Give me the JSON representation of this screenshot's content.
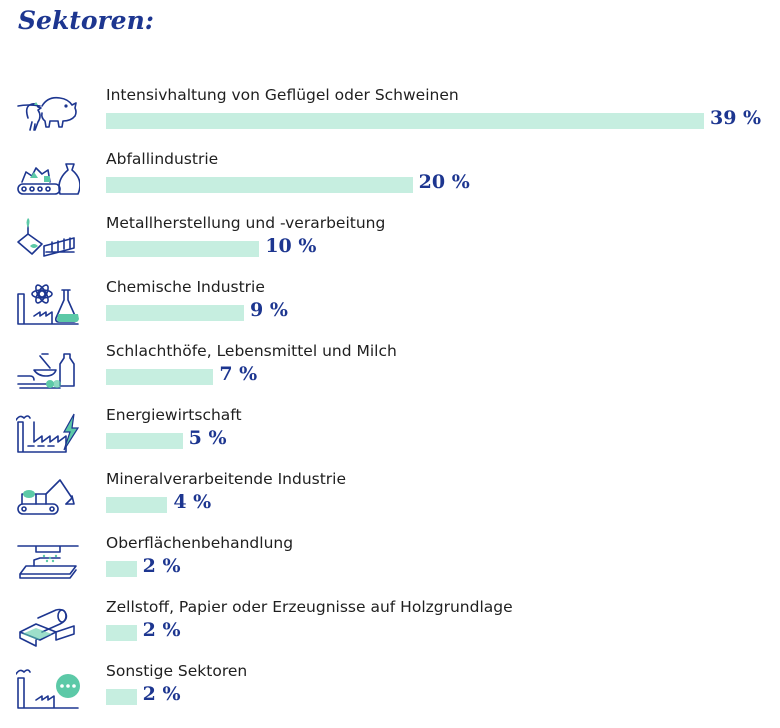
{
  "title": "Sektoren:",
  "chart_data": {
    "type": "bar",
    "orientation": "horizontal",
    "max": 39,
    "title": "Sektoren:",
    "colors": {
      "bar": "#c6eee0",
      "value": "#1d3690",
      "icon": "#1d3690",
      "icon_accent": "#5cc9a7"
    },
    "items": [
      {
        "label": "Intensivhaltung von Geflügel oder Schweinen",
        "value": 39,
        "value_label": "39 %",
        "icon": "pig-chicken-icon"
      },
      {
        "label": "Abfallindustrie",
        "value": 20,
        "value_label": "20 %",
        "icon": "waste-conveyor-icon"
      },
      {
        "label": "Metallherstellung und -verarbeitung",
        "value": 10,
        "value_label": "10 %",
        "icon": "metal-ladle-icon"
      },
      {
        "label": "Chemische Industrie",
        "value": 9,
        "value_label": "9 %",
        "icon": "chemical-flask-icon"
      },
      {
        "label": "Schlachthöfe, Lebensmittel und Milch",
        "value": 7,
        "value_label": "7 %",
        "icon": "food-milk-icon"
      },
      {
        "label": "Energiewirtschaft",
        "value": 5,
        "value_label": "5 %",
        "icon": "energy-factory-icon"
      },
      {
        "label": "Mineralverarbeitende Industrie",
        "value": 4,
        "value_label": "4 %",
        "icon": "excavator-icon"
      },
      {
        "label": "Oberflächenbehandlung",
        "value": 2,
        "value_label": "2 %",
        "icon": "surface-spray-icon"
      },
      {
        "label": "Zellstoff, Papier oder Erzeugnisse auf Holzgrundlage",
        "value": 2,
        "value_label": "2 %",
        "icon": "paper-roll-icon"
      },
      {
        "label": "Sonstige Sektoren",
        "value": 2,
        "value_label": "2 %",
        "icon": "other-sectors-icon"
      }
    ]
  }
}
